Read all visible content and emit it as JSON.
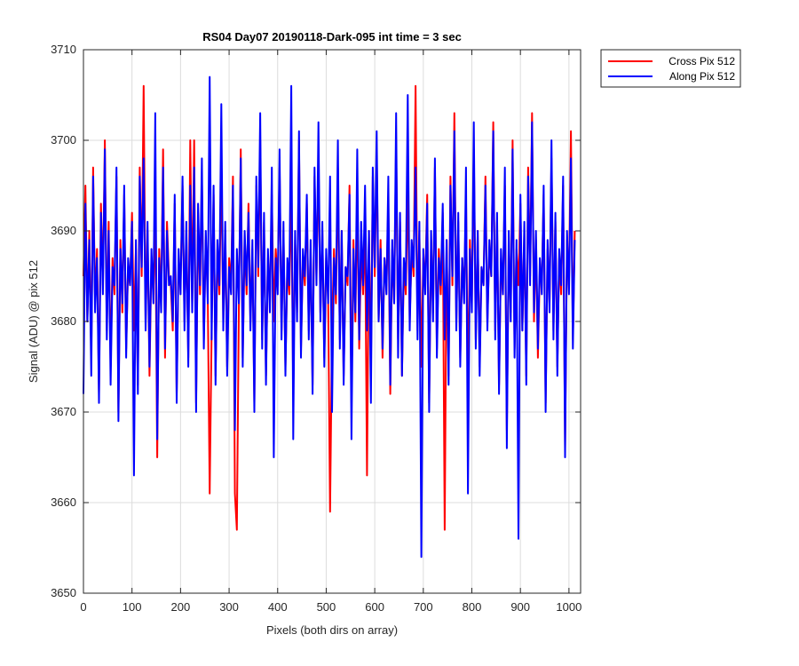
{
  "chart_data": {
    "type": "line",
    "title": "RS04 Day07 20190118-Dark-095 int time = 3 sec",
    "xlabel": "Pixels (both dirs on array)",
    "ylabel": "Signal (ADU) @ pix 512",
    "xlim": [
      0,
      1024
    ],
    "ylim": [
      3650,
      3710
    ],
    "xticks": [
      0,
      100,
      200,
      300,
      400,
      500,
      600,
      700,
      800,
      900,
      1000
    ],
    "yticks": [
      3650,
      3660,
      3670,
      3680,
      3690,
      3700,
      3710
    ],
    "grid": true,
    "legend_position": "outside-top-right",
    "x_step": 4,
    "series": [
      {
        "name": "Cross Pix 512",
        "color": "#ff0000",
        "values": [
          3685,
          3695,
          3680,
          3690,
          3676,
          3697,
          3682,
          3688,
          3672,
          3693,
          3684,
          3700,
          3679,
          3691,
          3675,
          3687,
          3683,
          3696,
          3670,
          3689,
          3681,
          3694,
          3677,
          3686,
          3684,
          3692,
          3679,
          3688,
          3673,
          3697,
          3685,
          3706,
          3680,
          3690,
          3674,
          3687,
          3683,
          3693,
          3665,
          3688,
          3682,
          3699,
          3676,
          3691,
          3685,
          3684,
          3679,
          3693,
          3672,
          3687,
          3684,
          3695,
          3680,
          3690,
          3676,
          3700,
          3682,
          3700,
          3671,
          3692,
          3683,
          3696,
          3678,
          3689,
          3683,
          3661,
          3679,
          3694,
          3674,
          3688,
          3683,
          3697,
          3680,
          3690,
          3675,
          3687,
          3684,
          3696,
          3661,
          3657,
          3681,
          3699,
          3676,
          3689,
          3683,
          3693,
          3680,
          3688,
          3671,
          3695,
          3685,
          3700,
          3678,
          3691,
          3674,
          3687,
          3682,
          3694,
          3680,
          3688,
          3684,
          3697,
          3679,
          3690,
          3675,
          3686,
          3683,
          3695,
          3672,
          3689,
          3681,
          3700,
          3677,
          3687,
          3684,
          3693,
          3679,
          3688,
          3673,
          3696,
          3685,
          3698,
          3681,
          3690,
          3676,
          3687,
          3683,
          3659,
          3679,
          3688,
          3682,
          3697,
          3678,
          3690,
          3674,
          3686,
          3684,
          3695,
          3671,
          3689,
          3680,
          3694,
          3677,
          3688,
          3683,
          3691,
          3663,
          3690,
          3675,
          3696,
          3685,
          3699,
          3680,
          3689,
          3676,
          3687,
          3684,
          3693,
          3672,
          3688,
          3682,
          3700,
          3678,
          3691,
          3674,
          3686,
          3683,
          3695,
          3680,
          3688,
          3685,
          3706,
          3679,
          3690,
          3675,
          3687,
          3684,
          3694,
          3671,
          3689,
          3681,
          3697,
          3677,
          3688,
          3683,
          3692,
          3657,
          3689,
          3674,
          3696,
          3684,
          3703,
          3680,
          3691,
          3676,
          3687,
          3683,
          3694,
          3672,
          3689,
          3682,
          3699,
          3678,
          3690,
          3675,
          3686,
          3684,
          3696,
          3680,
          3688,
          3685,
          3702,
          3679,
          3691,
          3673,
          3687,
          3683,
          3695,
          3668,
          3689,
          3681,
          3700,
          3677,
          3688,
          3684,
          3693,
          3679,
          3690,
          3674,
          3697,
          3685,
          3703,
          3680,
          3689,
          3676,
          3686,
          3684,
          3694,
          3671,
          3688,
          3682,
          3698,
          3679,
          3691,
          3675,
          3687,
          3683,
          3695,
          3666,
          3689,
          3684,
          3701,
          3678,
          3690
        ]
      },
      {
        "name": "Along Pix 512",
        "color": "#0000ff",
        "values": [
          3672,
          3693,
          3680,
          3689,
          3674,
          3696,
          3681,
          3687,
          3671,
          3692,
          3683,
          3699,
          3678,
          3690,
          3673,
          3686,
          3684,
          3697,
          3669,
          3688,
          3682,
          3695,
          3676,
          3687,
          3684,
          3691,
          3663,
          3689,
          3672,
          3696,
          3686,
          3698,
          3679,
          3691,
          3675,
          3688,
          3682,
          3703,
          3667,
          3687,
          3681,
          3697,
          3677,
          3690,
          3684,
          3685,
          3680,
          3694,
          3671,
          3688,
          3683,
          3696,
          3679,
          3691,
          3675,
          3695,
          3681,
          3697,
          3670,
          3693,
          3684,
          3698,
          3677,
          3690,
          3682,
          3707,
          3678,
          3695,
          3673,
          3689,
          3684,
          3704,
          3679,
          3691,
          3674,
          3686,
          3683,
          3695,
          3668,
          3688,
          3682,
          3698,
          3675,
          3690,
          3684,
          3692,
          3679,
          3689,
          3670,
          3696,
          3686,
          3703,
          3677,
          3692,
          3673,
          3688,
          3681,
          3697,
          3665,
          3687,
          3683,
          3699,
          3678,
          3691,
          3674,
          3687,
          3684,
          3706,
          3667,
          3690,
          3680,
          3701,
          3676,
          3688,
          3685,
          3694,
          3678,
          3689,
          3672,
          3697,
          3684,
          3702,
          3680,
          3691,
          3675,
          3688,
          3682,
          3696,
          3670,
          3687,
          3683,
          3700,
          3677,
          3690,
          3673,
          3686,
          3685,
          3694,
          3667,
          3688,
          3681,
          3699,
          3678,
          3691,
          3684,
          3695,
          3679,
          3690,
          3671,
          3697,
          3686,
          3701,
          3680,
          3688,
          3677,
          3687,
          3683,
          3696,
          3673,
          3689,
          3682,
          3703,
          3676,
          3692,
          3674,
          3687,
          3684,
          3705,
          3679,
          3689,
          3686,
          3697,
          3678,
          3691,
          3654,
          3688,
          3683,
          3693,
          3670,
          3690,
          3680,
          3698,
          3676,
          3687,
          3684,
          3693,
          3678,
          3689,
          3673,
          3695,
          3685,
          3701,
          3679,
          3692,
          3675,
          3687,
          3682,
          3697,
          3661,
          3688,
          3681,
          3702,
          3677,
          3690,
          3674,
          3686,
          3684,
          3695,
          3679,
          3689,
          3685,
          3701,
          3678,
          3692,
          3672,
          3688,
          3683,
          3697,
          3666,
          3690,
          3680,
          3699,
          3676,
          3689,
          3656,
          3694,
          3679,
          3691,
          3673,
          3696,
          3684,
          3702,
          3681,
          3690,
          3677,
          3687,
          3683,
          3695,
          3670,
          3689,
          3681,
          3700,
          3678,
          3692,
          3674,
          3688,
          3684,
          3696,
          3665,
          3690,
          3683,
          3698,
          3677,
          3689
        ]
      }
    ]
  }
}
